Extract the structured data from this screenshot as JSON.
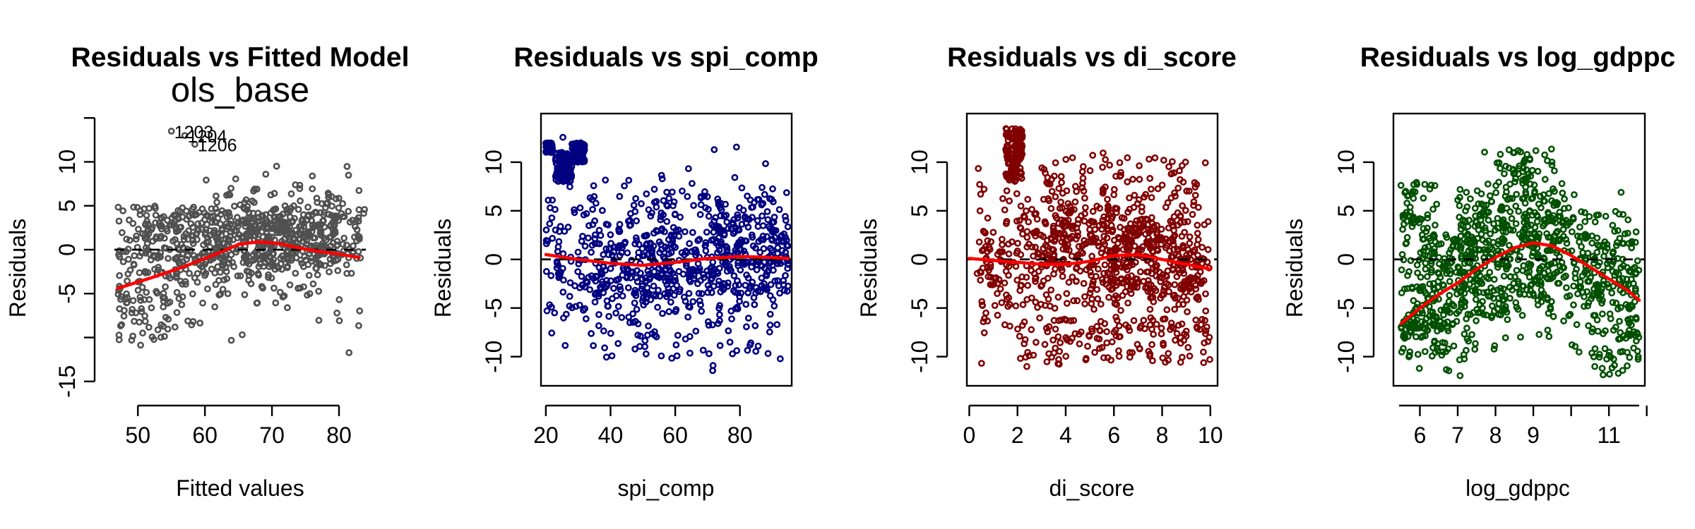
{
  "chart_data": [
    {
      "type": "scatter",
      "id": "fitted",
      "title": "Residuals vs Fitted Model",
      "subtitle": "ols_base",
      "xlabel": "Fitted values",
      "ylabel": "Residuals",
      "xlim": [
        46.5,
        84
      ],
      "ylim": [
        -15.5,
        15.5
      ],
      "frame": "L",
      "x_ticks": [
        50,
        60,
        70,
        80
      ],
      "y_ticks": [
        -15,
        -5,
        0,
        5,
        10
      ],
      "point_color": "#505050",
      "smooth_color": "#ff0000",
      "reference_line": 0,
      "smooth": [
        [
          47,
          -4.4
        ],
        [
          52,
          -3.2
        ],
        [
          57,
          -1.9
        ],
        [
          62,
          -0.4
        ],
        [
          65,
          0.6
        ],
        [
          68,
          0.9
        ],
        [
          71,
          0.7
        ],
        [
          74,
          0.2
        ],
        [
          77,
          -0.2
        ],
        [
          80,
          -0.5
        ],
        [
          83,
          -0.9
        ]
      ],
      "bands": [
        [
          47,
          84,
          1.0,
          5.0
        ],
        [
          48,
          84,
          -1.0,
          4.0
        ],
        [
          50,
          80,
          -3.0,
          4.5
        ],
        [
          52,
          80,
          -1.0,
          5.5
        ],
        [
          55,
          80,
          -2.0,
          4.5
        ],
        [
          60,
          80,
          -1.5,
          3.5
        ]
      ],
      "sample": {
        "count": 900,
        "x_range": [
          47,
          83.5
        ],
        "y_range": [
          -12,
          11
        ]
      },
      "labeled_points": [
        {
          "label": "1203",
          "x": 55.0,
          "y": 13.5
        },
        {
          "label": "1204",
          "x": 57.0,
          "y": 13.0
        },
        {
          "label": "1206",
          "x": 58.5,
          "y": 12.0
        }
      ]
    },
    {
      "type": "scatter",
      "id": "spi",
      "title": "Residuals vs spi_comp",
      "xlabel": "spi_comp",
      "ylabel": "Residuals",
      "xlim": [
        18.5,
        96
      ],
      "ylim": [
        -13,
        15
      ],
      "frame": "box",
      "x_ticks": [
        20,
        40,
        60,
        80
      ],
      "y_ticks": [
        -10,
        -5,
        0,
        5,
        10
      ],
      "point_color": "#000080",
      "smooth_color": "#ff0000",
      "reference_line": 0,
      "smooth": [
        [
          20,
          0.5
        ],
        [
          30,
          0.0
        ],
        [
          40,
          -0.4
        ],
        [
          50,
          -0.6
        ],
        [
          60,
          -0.3
        ],
        [
          70,
          0.1
        ],
        [
          80,
          0.3
        ],
        [
          90,
          0.2
        ],
        [
          95,
          0.1
        ]
      ],
      "bands": [
        [
          20,
          22,
          11.0,
          12.0
        ],
        [
          23,
          28,
          8.0,
          11.0
        ],
        [
          28,
          32,
          10.0,
          12.0
        ],
        [
          35,
          60,
          -4.0,
          3.0
        ],
        [
          45,
          85,
          -10.0,
          7.0
        ],
        [
          70,
          95,
          -3.5,
          4.5
        ]
      ],
      "sample": {
        "count": 1100,
        "x_range": [
          20,
          95
        ],
        "y_range": [
          -12,
          13.8
        ]
      },
      "labeled_points": []
    },
    {
      "type": "scatter",
      "id": "di",
      "title": "Residuals vs di_score",
      "xlabel": "di_score",
      "ylabel": "Residuals",
      "xlim": [
        -0.1,
        10.3
      ],
      "ylim": [
        -13,
        15
      ],
      "frame": "box",
      "x_ticks": [
        0,
        2,
        4,
        6,
        8,
        10
      ],
      "y_ticks": [
        -10,
        -5,
        0,
        5,
        10
      ],
      "point_color": "#800000",
      "smooth_color": "#ff0000",
      "reference_line": 0,
      "smooth": [
        [
          0,
          0.1
        ],
        [
          1,
          -0.1
        ],
        [
          2,
          -0.3
        ],
        [
          3,
          -0.5
        ],
        [
          4,
          -0.5
        ],
        [
          5,
          -0.2
        ],
        [
          6,
          0.4
        ],
        [
          7,
          0.5
        ],
        [
          8,
          0.0
        ],
        [
          9,
          -0.5
        ],
        [
          10,
          -1.0
        ]
      ],
      "bands": [
        [
          1.5,
          2.2,
          8.0,
          13.5
        ],
        [
          2.0,
          10.0,
          -11.0,
          -6.0
        ],
        [
          2.0,
          9.0,
          -3.0,
          5.5
        ],
        [
          3.0,
          9.5,
          0.0,
          10.5
        ],
        [
          5.5,
          10.0,
          -4.0,
          4.0
        ]
      ],
      "sample": {
        "count": 1100,
        "x_range": [
          0.3,
          9.9
        ],
        "y_range": [
          -12,
          13.8
        ]
      },
      "labeled_points": []
    },
    {
      "type": "scatter",
      "id": "gdp",
      "title": "Residuals vs log_gdppc",
      "xlabel": "log_gdppc",
      "ylabel": "Residuals",
      "xlim": [
        5.3,
        11.95
      ],
      "ylim": [
        -13,
        15
      ],
      "frame": "box",
      "x_ticks": [
        6,
        7,
        8,
        9,
        11
      ],
      "y_ticks": [
        -10,
        -5,
        0,
        5,
        10
      ],
      "point_color": "#005000",
      "smooth_color": "#ff0000",
      "reference_line": 0,
      "smooth": [
        [
          5.5,
          -6.6
        ],
        [
          6,
          -5.0
        ],
        [
          6.5,
          -3.6
        ],
        [
          7,
          -2.4
        ],
        [
          7.5,
          -1.0
        ],
        [
          8,
          0.2
        ],
        [
          8.5,
          1.2
        ],
        [
          9,
          1.7
        ],
        [
          9.5,
          1.4
        ],
        [
          10,
          0.4
        ],
        [
          10.5,
          -0.8
        ],
        [
          11,
          -2.0
        ],
        [
          11.5,
          -3.2
        ],
        [
          11.8,
          -4.2
        ]
      ],
      "bands": [
        [
          5.5,
          6.4,
          -8.0,
          8.0
        ],
        [
          6.2,
          7.5,
          -10.0,
          3.0
        ],
        [
          7.0,
          8.3,
          -6.0,
          7.5
        ],
        [
          8.0,
          9.8,
          0.0,
          11.5
        ],
        [
          8.5,
          10.5,
          -5.0,
          5.0
        ],
        [
          10.5,
          11.8,
          -12.0,
          3.0
        ]
      ],
      "sample": {
        "count": 1100,
        "x_range": [
          5.5,
          11.8
        ],
        "y_range": [
          -12,
          13.8
        ]
      },
      "labeled_points": []
    }
  ]
}
